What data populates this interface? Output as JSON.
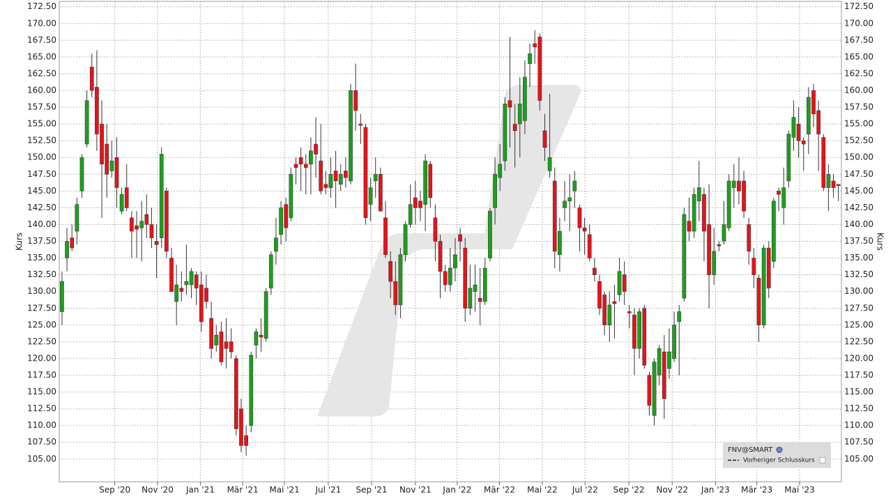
{
  "chart_data": {
    "type": "candlestick",
    "y_label": "Kurs",
    "legend": [
      "FNV@SMART",
      "Vorheriger Schlusskurs"
    ],
    "up_color": "#1e9e1e",
    "down_color": "#e3141b",
    "grid": true,
    "xlim": [
      -0.55,
      156.6
    ],
    "ylim": [
      101.6,
      173.3
    ],
    "xticks": [
      {
        "value": 10.6,
        "label": "Sep '20"
      },
      {
        "value": 19.2,
        "label": "Nov '20"
      },
      {
        "value": 27.8,
        "label": "Jan '21"
      },
      {
        "value": 36.3,
        "label": "Mär '21"
      },
      {
        "value": 44.7,
        "label": "Mai '21"
      },
      {
        "value": 53.5,
        "label": "Jul '21"
      },
      {
        "value": 62.2,
        "label": "Sep '21"
      },
      {
        "value": 71,
        "label": "Nov '21"
      },
      {
        "value": 79.4,
        "label": "Jan '22"
      },
      {
        "value": 87.9,
        "label": "Mär '22"
      },
      {
        "value": 96.5,
        "label": "Mai '22"
      },
      {
        "value": 105.1,
        "label": "Jul '22"
      },
      {
        "value": 113.9,
        "label": "Sep '22"
      },
      {
        "value": 122.6,
        "label": "Nov '22"
      },
      {
        "value": 131.3,
        "label": "Jan '23"
      },
      {
        "value": 139.6,
        "label": "Mär '23"
      },
      {
        "value": 148.2,
        "label": "Mai '23"
      }
    ],
    "yticks": [
      {
        "value": 105,
        "label": "105.00"
      },
      {
        "value": 107.5,
        "label": "107.50"
      },
      {
        "value": 110,
        "label": "110.00"
      },
      {
        "value": 112.5,
        "label": "112.50"
      },
      {
        "value": 115,
        "label": "115.00"
      },
      {
        "value": 117.5,
        "label": "117.50"
      },
      {
        "value": 120,
        "label": "120.00"
      },
      {
        "value": 122.5,
        "label": "122.50"
      },
      {
        "value": 125,
        "label": "125.00"
      },
      {
        "value": 127.5,
        "label": "127.50"
      },
      {
        "value": 130,
        "label": "130.00"
      },
      {
        "value": 132.5,
        "label": "132.50"
      },
      {
        "value": 135,
        "label": "135.00"
      },
      {
        "value": 137.5,
        "label": "137.50"
      },
      {
        "value": 140,
        "label": "140.00"
      },
      {
        "value": 142.5,
        "label": "142.50"
      },
      {
        "value": 145,
        "label": "145.00"
      },
      {
        "value": 147.5,
        "label": "147.50"
      },
      {
        "value": 150,
        "label": "150.00"
      },
      {
        "value": 152.5,
        "label": "152.50"
      },
      {
        "value": 155,
        "label": "155.00"
      },
      {
        "value": 157.5,
        "label": "157.50"
      },
      {
        "value": 160,
        "label": "160.00"
      },
      {
        "value": 162.5,
        "label": "162.50"
      },
      {
        "value": 165,
        "label": "165.00"
      },
      {
        "value": 167.5,
        "label": "167.50"
      },
      {
        "value": 170,
        "label": "170.00"
      },
      {
        "value": 172.5,
        "label": "172.50"
      }
    ],
    "open": [
      127,
      135,
      138,
      139,
      145,
      152,
      163.5,
      160.5,
      155,
      152,
      148,
      150,
      142,
      145.5,
      141,
      139.8,
      139.5,
      141.5,
      140,
      137.5,
      138,
      145,
      135,
      128.5,
      130.5,
      131,
      131,
      132.5,
      131,
      130.5,
      126,
      122,
      124,
      122.5,
      122.5,
      120,
      112.5,
      108.5,
      110,
      122,
      123.5,
      123,
      130.5,
      136,
      138.5,
      143,
      141,
      149,
      150,
      149,
      149,
      152,
      149.5,
      146,
      145.5,
      148,
      146,
      148,
      146.5,
      160,
      155,
      154.5,
      143,
      146.5,
      147.5,
      141,
      134.5,
      131.5,
      128,
      135.5,
      140,
      144,
      143.5,
      143,
      149,
      141,
      137.5,
      133,
      131,
      133.5,
      138.5,
      136.5,
      127.5,
      130,
      129,
      128.5,
      135,
      142.5,
      147,
      149.5,
      158.5,
      155,
      155,
      155.5,
      164,
      167,
      168,
      154,
      148,
      146.5,
      135.5,
      142.5,
      143.5,
      145,
      142.5,
      139.5,
      138.5,
      133.5,
      131.5,
      129.5,
      125,
      128.5,
      129.5,
      132.5,
      127,
      126.5,
      121.5,
      127.5,
      117.5,
      111.5,
      117.5,
      121,
      118.5,
      120,
      125.5,
      129,
      140.5,
      139,
      143.5,
      144.5,
      140,
      132.5,
      137,
      137.5,
      139.5,
      145.5,
      146.5,
      146.5,
      140,
      135,
      132,
      125,
      136.5,
      134.5,
      145,
      142.5,
      146.5,
      153,
      155,
      152.5,
      153.5,
      160,
      157,
      153,
      145.5,
      146.5,
      146
    ],
    "high": [
      133,
      139.5,
      140,
      144,
      150.5,
      160,
      165.5,
      166,
      158.5,
      155,
      152.5,
      153,
      145.5,
      149,
      142,
      142,
      143.5,
      144.5,
      142.5,
      140,
      151.5,
      145.5,
      136.5,
      134,
      133,
      137,
      133.5,
      133,
      133,
      132.5,
      128.5,
      125,
      125.5,
      126,
      124.5,
      120.5,
      114,
      110,
      121,
      124.5,
      126,
      130.5,
      136,
      141,
      143.5,
      144,
      148.5,
      150,
      151.5,
      150.5,
      153,
      156,
      155,
      148,
      150,
      151,
      149,
      150,
      161,
      164,
      156.5,
      155,
      147,
      150,
      148.5,
      143.5,
      136,
      134.5,
      136.5,
      140.5,
      146,
      146.5,
      145,
      150.5,
      149.5,
      143,
      138.5,
      134,
      136.5,
      138,
      139.5,
      138,
      134,
      134,
      133.5,
      135,
      142.5,
      150,
      152,
      159,
      168,
      158,
      162,
      164.5,
      167,
      169,
      168.5,
      156.5,
      159.5,
      148.5,
      141,
      146.5,
      147.5,
      148,
      143,
      141,
      140,
      135,
      132.5,
      130,
      130,
      131,
      135,
      134.5,
      128,
      127.5,
      127.5,
      128,
      118,
      120,
      122,
      123.5,
      124.5,
      127,
      128,
      142.5,
      144,
      145.5,
      149.5,
      145.5,
      146,
      139.5,
      137.5,
      143.5,
      147.5,
      149,
      150,
      148,
      141,
      136.5,
      132.5,
      137,
      137.5,
      144,
      145.5,
      148.5,
      154,
      158.5,
      157.5,
      153,
      160.5,
      161,
      158.5,
      153.5,
      149,
      147.5,
      146
    ],
    "low": [
      125,
      133,
      136,
      137,
      144,
      151.5,
      159,
      151,
      141,
      144,
      147,
      142.5,
      141.5,
      142,
      135,
      135,
      134.5,
      138,
      136.5,
      132,
      136.5,
      135,
      130,
      125,
      128.5,
      129.5,
      129,
      128,
      124,
      127.5,
      120,
      121,
      119,
      118.5,
      120,
      108.5,
      106,
      105.5,
      109,
      120,
      121,
      122.5,
      129.5,
      134,
      137,
      137.5,
      140.5,
      146,
      145,
      144.5,
      144.5,
      147,
      144.5,
      144.5,
      144,
      142.5,
      145,
      145.5,
      146,
      154,
      152,
      140,
      140.5,
      144,
      142,
      135,
      129,
      126.5,
      126,
      134.5,
      139.5,
      140,
      140.5,
      139,
      142.5,
      134.5,
      129,
      130,
      130,
      131.5,
      134.5,
      125.5,
      126.5,
      127,
      125,
      128,
      134.5,
      140,
      145,
      148,
      151.5,
      148.5,
      150,
      153.5,
      160.5,
      164,
      157,
      149.5,
      147,
      133.5,
      133,
      140.5,
      139,
      142.5,
      136,
      135.5,
      134.5,
      131.5,
      126.5,
      123.5,
      122.5,
      123,
      128.5,
      128,
      124.5,
      117.5,
      120,
      118.5,
      111.5,
      110,
      116,
      111,
      117,
      119.5,
      117.5,
      128.5,
      137.5,
      138,
      140.5,
      134.5,
      127.5,
      131,
      136,
      137,
      139,
      142.5,
      143,
      141,
      134,
      130.5,
      122.5,
      124.5,
      129,
      133.5,
      142,
      140,
      145.5,
      151,
      150,
      148,
      150.5,
      154.5,
      148,
      145,
      142,
      144,
      143.5
    ],
    "close": [
      131.5,
      137.5,
      136.5,
      143,
      150,
      158.5,
      160,
      153.5,
      149,
      147.5,
      149.5,
      145.5,
      144.5,
      142.5,
      139,
      139.3,
      140.5,
      140,
      138,
      137,
      150.5,
      136,
      130,
      131,
      130,
      131.5,
      133,
      130.5,
      125.5,
      128.5,
      121.5,
      123.5,
      119.5,
      121.5,
      121,
      109.5,
      107,
      107,
      120.5,
      124,
      123.2,
      130,
      135.5,
      138,
      142.5,
      139.5,
      147.5,
      148.5,
      149,
      148.5,
      151,
      150.5,
      145,
      145.5,
      147.5,
      146.5,
      147.5,
      147,
      160,
      157,
      154.8,
      141,
      145.5,
      147.5,
      142,
      135.5,
      131.5,
      128,
      135.5,
      140,
      143,
      142.5,
      142.5,
      149.5,
      144,
      137.5,
      133,
      131,
      133.5,
      135.5,
      137.5,
      127.5,
      130.5,
      131,
      128.5,
      133.5,
      142,
      147.5,
      149,
      158,
      157.5,
      154,
      158,
      162,
      165.5,
      166.5,
      158.5,
      151.5,
      150,
      136,
      139,
      143.5,
      144,
      146.5,
      139.5,
      139,
      135,
      132.5,
      127.5,
      125,
      128,
      128.2,
      133,
      130,
      126.8,
      121.5,
      127,
      119,
      113,
      119.5,
      121.5,
      114,
      121,
      125,
      127,
      141.5,
      139,
      144.5,
      145.5,
      139,
      132.5,
      136,
      136.8,
      140,
      146.5,
      146.5,
      145,
      142,
      136,
      132.5,
      125,
      136.5,
      130.5,
      143.5,
      144.5,
      145.5,
      153.5,
      156,
      152.5,
      152,
      159,
      156.5,
      153.5,
      145.5,
      147.5,
      145.5,
      145.8
    ]
  }
}
